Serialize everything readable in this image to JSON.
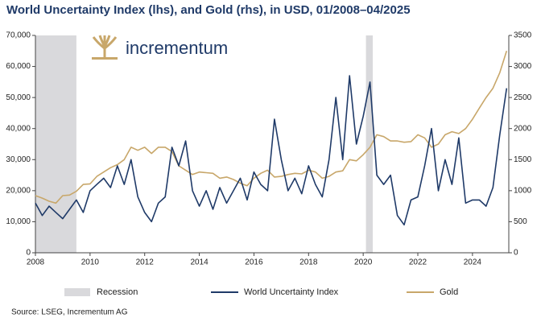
{
  "chart_data": {
    "type": "line",
    "title": "World Uncertainty Index (lhs), and Gold (rhs), in USD, 01/2008–04/2025",
    "source": "Source: LSEG, Incrementum AG",
    "logo": "incrementum",
    "recession_label": "Recession",
    "recession_color": "#d9d9dc",
    "recessions": [
      [
        2008.0,
        2009.5
      ],
      [
        2020.1,
        2020.35
      ]
    ],
    "x": [
      2008,
      2008.25,
      2008.5,
      2008.75,
      2009,
      2009.25,
      2009.5,
      2009.75,
      2010,
      2010.25,
      2010.5,
      2010.75,
      2011,
      2011.25,
      2011.5,
      2011.75,
      2012,
      2012.25,
      2012.5,
      2012.75,
      2013,
      2013.25,
      2013.5,
      2013.75,
      2014,
      2014.25,
      2014.5,
      2014.75,
      2015,
      2015.25,
      2015.5,
      2015.75,
      2016,
      2016.25,
      2016.5,
      2016.75,
      2017,
      2017.25,
      2017.5,
      2017.75,
      2018,
      2018.25,
      2018.5,
      2018.75,
      2019,
      2019.25,
      2019.5,
      2019.75,
      2020,
      2020.25,
      2020.5,
      2020.75,
      2021,
      2021.25,
      2021.5,
      2021.75,
      2022,
      2022.25,
      2022.5,
      2022.75,
      2023,
      2023.25,
      2023.5,
      2023.75,
      2024,
      2024.25,
      2024.5,
      2024.75,
      2025,
      2025.25
    ],
    "series": [
      {
        "name": "World Uncertainty Index",
        "color": "#1f3a68",
        "axis": "y",
        "values": [
          16000,
          12000,
          15000,
          13000,
          11000,
          14000,
          17000,
          13000,
          20000,
          22000,
          24000,
          21000,
          28000,
          22000,
          30000,
          18000,
          13000,
          10000,
          16000,
          18000,
          34000,
          28000,
          36000,
          20000,
          15000,
          20000,
          14000,
          21000,
          16000,
          20000,
          24000,
          17000,
          26000,
          22000,
          20000,
          43000,
          30000,
          20000,
          24000,
          19000,
          28000,
          22000,
          18000,
          30000,
          50000,
          30000,
          57000,
          35000,
          44000,
          55000,
          25000,
          22000,
          25000,
          12000,
          9000,
          17000,
          18000,
          28000,
          40000,
          20000,
          30000,
          22000,
          37000,
          16000,
          17000,
          17000,
          15000,
          21000,
          38000,
          53000
        ]
      },
      {
        "name": "Gold",
        "color": "#c8a76a",
        "axis": "y2",
        "values": [
          920,
          880,
          830,
          800,
          920,
          930,
          990,
          1100,
          1110,
          1230,
          1300,
          1370,
          1420,
          1500,
          1700,
          1650,
          1700,
          1600,
          1700,
          1700,
          1630,
          1400,
          1330,
          1260,
          1300,
          1290,
          1280,
          1200,
          1220,
          1180,
          1120,
          1080,
          1200,
          1280,
          1330,
          1220,
          1230,
          1260,
          1280,
          1270,
          1330,
          1300,
          1200,
          1230,
          1300,
          1320,
          1500,
          1480,
          1580,
          1700,
          1900,
          1870,
          1800,
          1800,
          1780,
          1790,
          1900,
          1850,
          1700,
          1750,
          1900,
          1950,
          1920,
          2000,
          2150,
          2330,
          2500,
          2650,
          2900,
          3250
        ]
      }
    ],
    "xlim": [
      2008,
      2025.33
    ],
    "xticks": [
      2008,
      2010,
      2012,
      2014,
      2016,
      2018,
      2020,
      2022,
      2024
    ],
    "ylim": [
      0,
      70000
    ],
    "yticks": [
      0,
      {
        "value": 10000,
        "label": "10,000"
      },
      {
        "value": 20000,
        "label": "20,000"
      },
      {
        "value": 30000,
        "label": "30,000"
      },
      {
        "value": 40000,
        "label": "40,000"
      },
      {
        "value": 50000,
        "label": "50,000"
      },
      {
        "value": 60000,
        "label": "60,000"
      },
      {
        "value": 70000,
        "label": "70,000"
      }
    ],
    "y2lim": [
      0,
      3500
    ],
    "y2ticks": [
      0,
      500,
      1000,
      1500,
      2000,
      2500,
      3000,
      3500
    ],
    "grid": false
  }
}
